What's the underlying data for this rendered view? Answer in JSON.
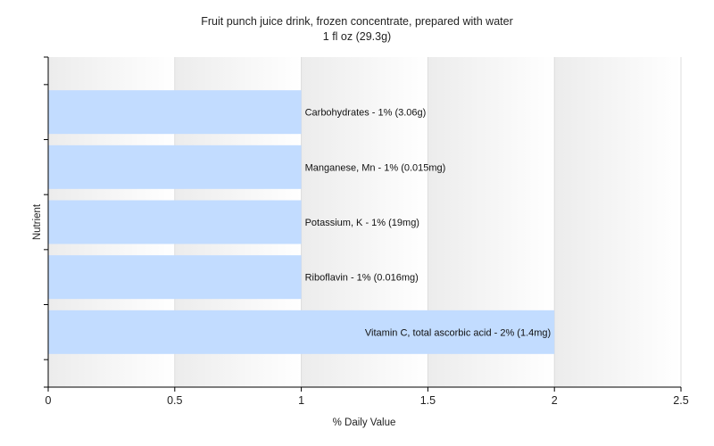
{
  "chart_data": {
    "type": "bar",
    "orientation": "horizontal",
    "title": "Fruit punch juice drink, frozen concentrate, prepared with water",
    "subtitle": "1 fl oz (29.3g)",
    "xlabel": "% Daily Value",
    "ylabel": "Nutrient",
    "xlim": [
      0,
      2.5
    ],
    "xticks": [
      "0",
      "0.5",
      "1",
      "1.5",
      "2",
      "2.5"
    ],
    "grid": true,
    "categories": [
      "Carbohydrates",
      "Manganese, Mn",
      "Potassium, K",
      "Riboflavin",
      "Vitamin C, total ascorbic acid"
    ],
    "values": [
      1,
      1,
      1,
      1,
      2
    ],
    "bar_labels": [
      "Carbohydrates - 1% (3.06g)",
      "Manganese, Mn - 1% (0.015mg)",
      "Potassium, K - 1% (19mg)",
      "Riboflavin - 1% (0.016mg)",
      "Vitamin C, total ascorbic acid - 2% (1.4mg)"
    ],
    "colors": {
      "bar": "#c2dcff",
      "axis": "#000000",
      "grid": "#dddddd",
      "plot_bg_start": "#ececec",
      "plot_bg_end": "#ffffff"
    }
  }
}
